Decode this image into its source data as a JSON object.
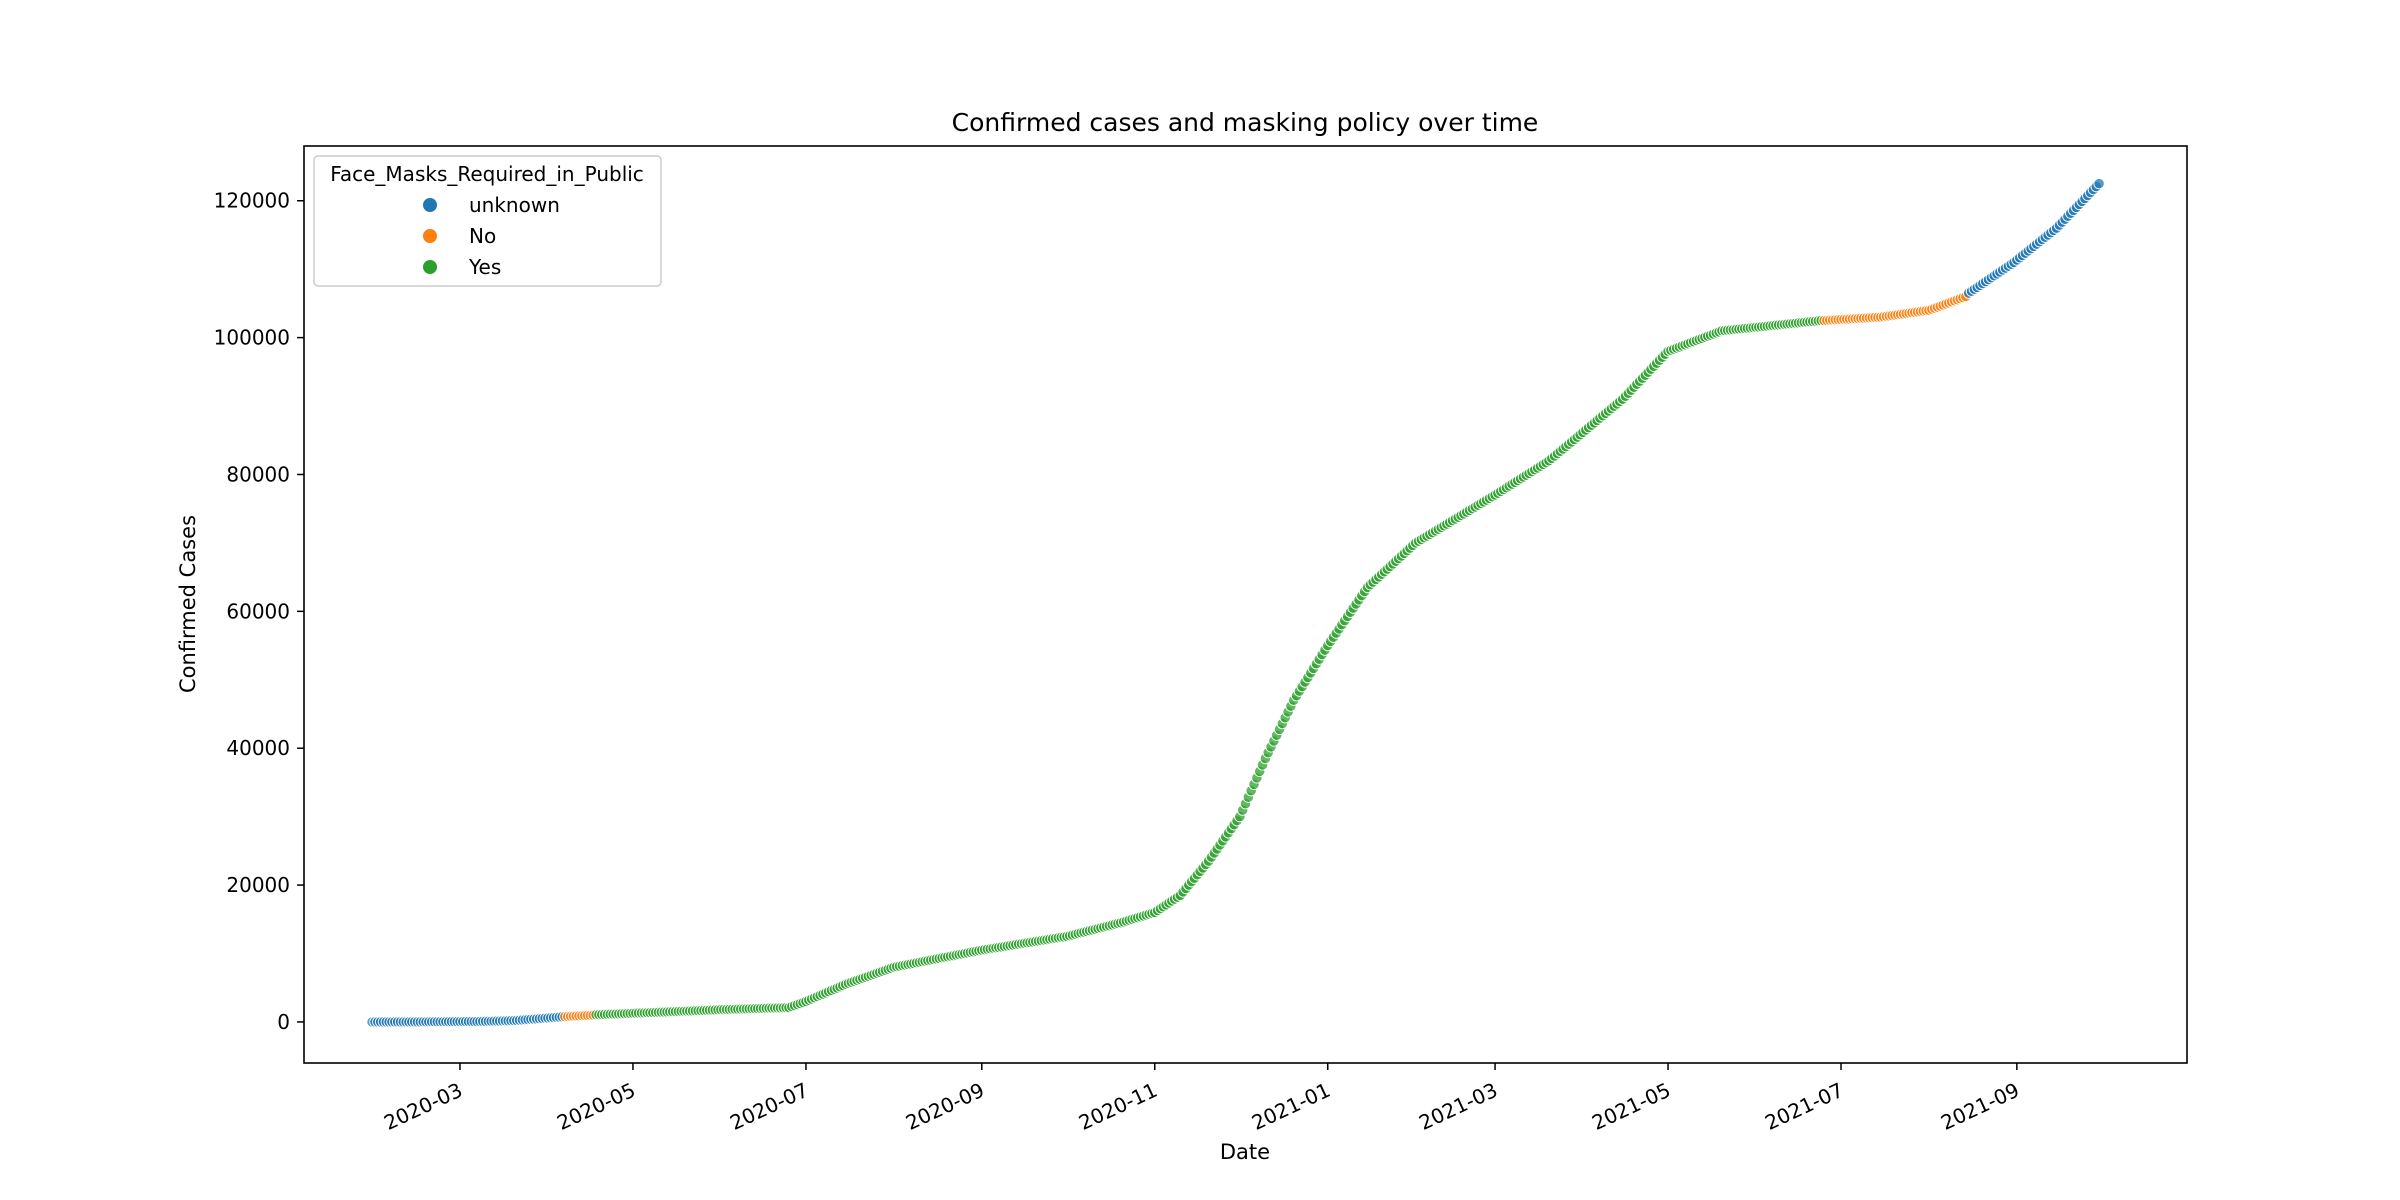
{
  "chart_data": {
    "type": "scatter",
    "title": "Confirmed cases and masking policy over time",
    "xlabel": "Date",
    "ylabel": "Confirmed Cases",
    "xlim": [
      "2020-01-06",
      "2021-10-31"
    ],
    "ylim": [
      -6000,
      128000
    ],
    "x_ticks": [
      "2020-03",
      "2020-05",
      "2020-07",
      "2020-09",
      "2020-11",
      "2021-01",
      "2021-03",
      "2021-05",
      "2021-07",
      "2021-09"
    ],
    "x_tick_dates": [
      "2020-03-01",
      "2020-05-01",
      "2020-07-01",
      "2020-09-01",
      "2020-11-01",
      "2021-01-01",
      "2021-03-01",
      "2021-05-01",
      "2021-07-01",
      "2021-09-01"
    ],
    "y_ticks": [
      0,
      20000,
      40000,
      60000,
      80000,
      100000,
      120000
    ],
    "x_tick_rotation": 25,
    "grid": false,
    "legend": {
      "title": "Face_Masks_Required_in_Public",
      "placement": "top-left",
      "entries": [
        {
          "name": "unknown",
          "color": "#1f77b4"
        },
        {
          "name": "No",
          "color": "#ff7f0e"
        },
        {
          "name": "Yes",
          "color": "#2ca02c"
        }
      ]
    },
    "series": [
      {
        "name": "unknown",
        "color": "#1f77b4",
        "date_range": [
          "2020-01-30",
          "2020-04-06"
        ],
        "points": [
          [
            "2020-01-30",
            0
          ],
          [
            "2020-02-20",
            20
          ],
          [
            "2020-03-10",
            80
          ],
          [
            "2020-03-20",
            200
          ],
          [
            "2020-03-28",
            450
          ],
          [
            "2020-04-06",
            750
          ]
        ]
      },
      {
        "name": "No",
        "color": "#ff7f0e",
        "date_range": [
          "2020-04-07",
          "2020-04-17"
        ],
        "points": [
          [
            "2020-04-07",
            780
          ],
          [
            "2020-04-17",
            1000
          ]
        ]
      },
      {
        "name": "Yes",
        "color": "#2ca02c",
        "date_range": [
          "2020-04-18",
          "2021-06-24"
        ],
        "points": [
          [
            "2020-04-18",
            1050
          ],
          [
            "2020-05-15",
            1500
          ],
          [
            "2020-06-01",
            1800
          ],
          [
            "2020-06-25",
            2100
          ],
          [
            "2020-07-01",
            3000
          ],
          [
            "2020-07-15",
            5500
          ],
          [
            "2020-08-01",
            8000
          ],
          [
            "2020-09-01",
            10500
          ],
          [
            "2020-10-01",
            12500
          ],
          [
            "2020-10-20",
            14500
          ],
          [
            "2020-11-01",
            16000
          ],
          [
            "2020-11-10",
            18500
          ],
          [
            "2020-11-20",
            23500
          ],
          [
            "2020-12-01",
            30000
          ],
          [
            "2020-12-10",
            38500
          ],
          [
            "2020-12-20",
            47000
          ],
          [
            "2021-01-01",
            55000
          ],
          [
            "2021-01-15",
            63500
          ],
          [
            "2021-02-01",
            70000
          ],
          [
            "2021-03-01",
            77000
          ],
          [
            "2021-03-20",
            82000
          ],
          [
            "2021-04-15",
            91000
          ],
          [
            "2021-05-01",
            98000
          ],
          [
            "2021-05-20",
            101000
          ],
          [
            "2021-06-24",
            102500
          ]
        ]
      },
      {
        "name": "No",
        "color": "#ff7f0e",
        "date_range": [
          "2021-06-25",
          "2021-08-14"
        ],
        "points": [
          [
            "2021-06-25",
            102500
          ],
          [
            "2021-07-15",
            103000
          ],
          [
            "2021-08-01",
            104000
          ],
          [
            "2021-08-14",
            106000
          ]
        ]
      },
      {
        "name": "unknown",
        "color": "#1f77b4",
        "date_range": [
          "2021-08-15",
          "2021-09-30"
        ],
        "points": [
          [
            "2021-08-15",
            106500
          ],
          [
            "2021-08-31",
            111000
          ],
          [
            "2021-09-15",
            116000
          ],
          [
            "2021-09-30",
            122500
          ]
        ]
      }
    ]
  }
}
